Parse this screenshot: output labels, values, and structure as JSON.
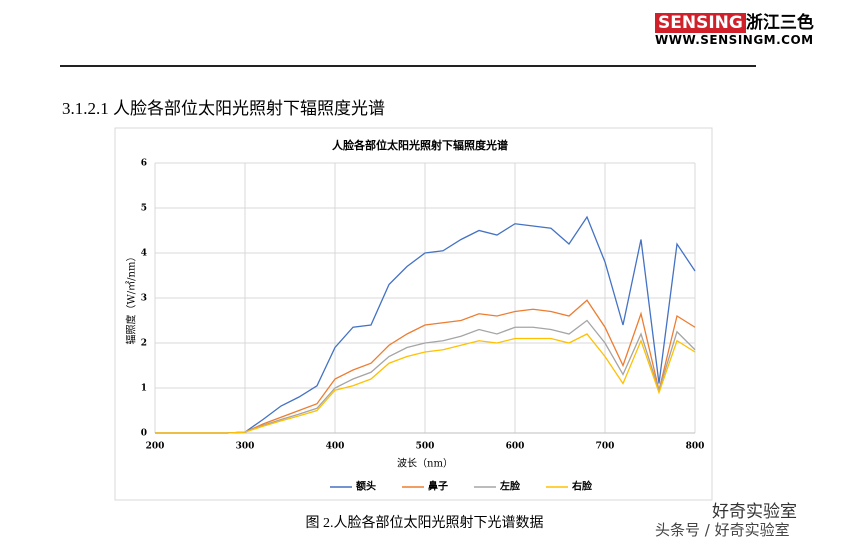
{
  "header": {
    "brand": "SENSING",
    "brand_cn": "浙江三色",
    "website": "WWW.SENSINGM.COM"
  },
  "section_title": "3.1.2.1 人脸各部位太阳光照射下辐照度光谱",
  "chart_data": {
    "type": "line",
    "title": "人脸各部位太阳光照射下辐照度光谱",
    "x_label": "波长（nm）",
    "y_label": "辐照度（W/㎡/nm）",
    "x": [
      200,
      220,
      240,
      260,
      280,
      300,
      320,
      340,
      360,
      380,
      400,
      420,
      440,
      460,
      480,
      500,
      520,
      540,
      560,
      580,
      600,
      620,
      640,
      660,
      680,
      700,
      720,
      740,
      760,
      780,
      800
    ],
    "xlim": [
      200,
      800
    ],
    "xticks": [
      200,
      300,
      400,
      500,
      600,
      700,
      800
    ],
    "ylim": [
      0,
      6
    ],
    "yticks": [
      0,
      1,
      2,
      3,
      4,
      5,
      6
    ],
    "grid": true,
    "legend": "bottom",
    "series": [
      {
        "name": "额头",
        "color": "#4472c4",
        "values": [
          0,
          0,
          0,
          0,
          0,
          0.02,
          0.3,
          0.6,
          0.8,
          1.05,
          1.9,
          2.35,
          2.4,
          3.3,
          3.7,
          4.0,
          4.05,
          4.3,
          4.5,
          4.4,
          4.65,
          4.6,
          4.55,
          4.2,
          4.8,
          3.8,
          2.4,
          4.3,
          1.1,
          4.2,
          3.6
        ]
      },
      {
        "name": "鼻子",
        "color": "#ed7d31",
        "values": [
          0,
          0,
          0,
          0,
          0,
          0.02,
          0.2,
          0.35,
          0.5,
          0.65,
          1.2,
          1.4,
          1.55,
          1.95,
          2.2,
          2.4,
          2.45,
          2.5,
          2.65,
          2.6,
          2.7,
          2.75,
          2.7,
          2.6,
          2.95,
          2.35,
          1.5,
          2.65,
          0.95,
          2.6,
          2.35
        ]
      },
      {
        "name": "左脸",
        "color": "#a5a5a5",
        "values": [
          0,
          0,
          0,
          0,
          0,
          0.02,
          0.17,
          0.3,
          0.42,
          0.55,
          1.0,
          1.2,
          1.35,
          1.7,
          1.9,
          2.0,
          2.05,
          2.15,
          2.3,
          2.2,
          2.35,
          2.35,
          2.3,
          2.2,
          2.5,
          2.0,
          1.3,
          2.2,
          0.95,
          2.25,
          1.85
        ]
      },
      {
        "name": "右脸",
        "color": "#ffc000",
        "values": [
          0,
          0,
          0,
          0,
          0,
          0.02,
          0.15,
          0.27,
          0.38,
          0.5,
          0.95,
          1.05,
          1.2,
          1.55,
          1.7,
          1.8,
          1.85,
          1.95,
          2.05,
          2.0,
          2.1,
          2.1,
          2.1,
          2.0,
          2.2,
          1.7,
          1.1,
          2.05,
          0.9,
          2.05,
          1.8
        ]
      }
    ]
  },
  "caption": "图 2.人脸各部位太阳光照射下光谱数据",
  "watermark": {
    "line1": "好奇实验室",
    "line2": "头条号 / 好奇实验室"
  }
}
